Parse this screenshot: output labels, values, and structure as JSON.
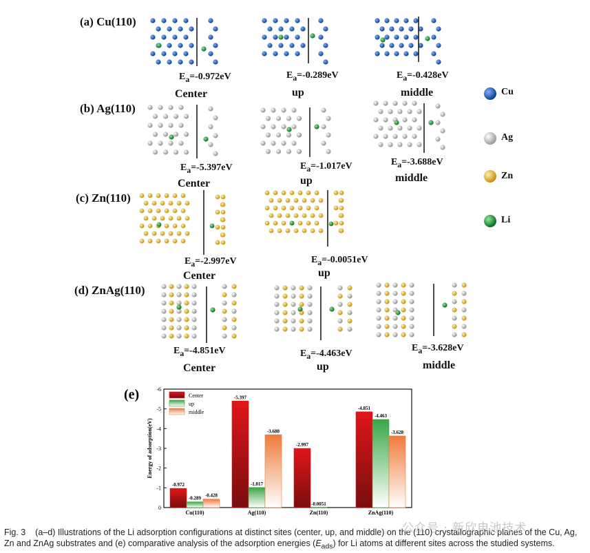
{
  "panels": [
    {
      "label": "(a) Cu(110)",
      "metal": "Cu",
      "sites": [
        {
          "energy_prefix": "E",
          "energy_sub": "a",
          "energy_value": "=-0.972eV",
          "site": "Center"
        },
        {
          "energy_prefix": "E",
          "energy_sub": "a",
          "energy_value": "=-0.289eV",
          "site": "up"
        },
        {
          "energy_prefix": "E",
          "energy_sub": "a",
          "energy_value": "=-0.428eV",
          "site": "middle"
        }
      ]
    },
    {
      "label": "(b) Ag(110)",
      "metal": "Ag",
      "sites": [
        {
          "energy_prefix": "E",
          "energy_sub": "a",
          "energy_value": "=-5.397eV",
          "site": "Center"
        },
        {
          "energy_prefix": "E",
          "energy_sub": "a",
          "energy_value": "=-1.017eV",
          "site": "up"
        },
        {
          "energy_prefix": "E",
          "energy_sub": "a",
          "energy_value": "=-3.688eV",
          "site": "middle"
        }
      ]
    },
    {
      "label": "(c) Zn(110)",
      "metal": "Zn",
      "sites": [
        {
          "energy_prefix": "E",
          "energy_sub": "a",
          "energy_value": "=-2.997eV",
          "site": "Center"
        },
        {
          "energy_prefix": "E",
          "energy_sub": "a",
          "energy_value": "=-0.0051eV",
          "site": "up"
        }
      ]
    },
    {
      "label": "(d) ZnAg(110)",
      "metal": "ZnAg",
      "sites": [
        {
          "energy_prefix": "E",
          "energy_sub": "a",
          "energy_value": "=-4.851eV",
          "site": "Center"
        },
        {
          "energy_prefix": "E",
          "energy_sub": "a",
          "energy_value": "=-4.463eV",
          "site": "up"
        },
        {
          "energy_prefix": "E",
          "energy_sub": "a",
          "energy_value": "=-3.628eV",
          "site": "middle"
        }
      ]
    }
  ],
  "atom_legend": [
    {
      "label": "Cu",
      "color": "#1a56b8"
    },
    {
      "label": "Ag",
      "color": "#d8d8d8"
    },
    {
      "label": "Zn",
      "color": "#e8b830"
    },
    {
      "label": "Li",
      "color": "#1f9e3a"
    }
  ],
  "chart_data": {
    "type": "bar",
    "panel_label": "(e)",
    "categories": [
      "Cu(110)",
      "Ag(110)",
      "Zn(110)",
      "ZnAg(110)"
    ],
    "series": [
      {
        "name": "Center",
        "color": "#e0161a",
        "values": [
          -0.972,
          -5.397,
          -2.997,
          -4.851
        ]
      },
      {
        "name": "up",
        "color": "#3aa646",
        "values": [
          -0.289,
          -1.017,
          -0.0051,
          -4.463
        ]
      },
      {
        "name": "middle",
        "color": "#f07a3a",
        "values": [
          -0.428,
          -3.688,
          null,
          -3.628
        ]
      }
    ],
    "value_labels": [
      [
        "-0.972",
        "-0.289",
        "-0.428"
      ],
      [
        "-5.397",
        "-1.017",
        "-3.688"
      ],
      [
        "-2.997",
        "-0.0051",
        ""
      ],
      [
        "-4.851",
        "-4.463",
        "-3.628"
      ]
    ],
    "ylabel": "Energy of adsorption(eV)",
    "ylim": [
      0,
      -6
    ],
    "yticks": [
      "0",
      "-1",
      "-2",
      "-3",
      "-4",
      "-5",
      "-6"
    ],
    "legend_position": "top-left"
  },
  "caption": {
    "fig": "Fig. 3",
    "text_before": "(a–d) Illustrations of the Li adsorption configurations at distinct sites (center, up, and middle) on the (110) crystallographic planes of the Cu, Ag, Zn and ZnAg substrates and (e) comparative analysis of the adsorption energies (",
    "symbol": "E",
    "symbol_sub": "ads",
    "text_after": ") for Li atoms at different sites across the studied systems."
  },
  "watermark": "公众号 · 新欣电池技术"
}
